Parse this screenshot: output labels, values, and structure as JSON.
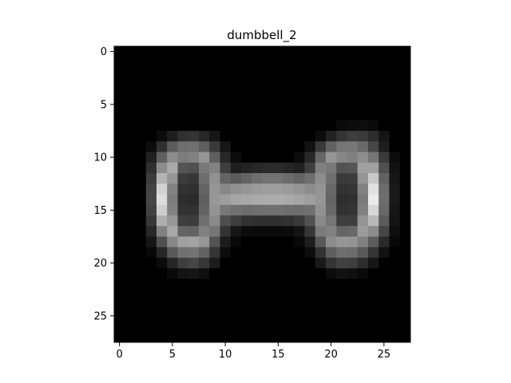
{
  "chart_data": {
    "type": "heatmap",
    "title": "dumbbell_2",
    "xlabel": "",
    "ylabel": "",
    "colormap": "gray",
    "grid": false,
    "legend": "none",
    "xlim": [
      -0.5,
      27.5
    ],
    "ylim": [
      27.5,
      -0.5
    ],
    "xticks": [
      0,
      5,
      10,
      15,
      20,
      25
    ],
    "yticks": [
      0,
      5,
      10,
      15,
      20,
      25
    ],
    "value_range": [
      0,
      255
    ],
    "rows": 28,
    "cols": 28,
    "values": [
      [
        0,
        0,
        0,
        0,
        0,
        0,
        0,
        0,
        0,
        0,
        0,
        0,
        0,
        0,
        0,
        0,
        0,
        0,
        0,
        0,
        0,
        0,
        0,
        0,
        0,
        0,
        0,
        0
      ],
      [
        0,
        0,
        0,
        0,
        0,
        0,
        0,
        0,
        0,
        0,
        0,
        0,
        0,
        0,
        0,
        0,
        0,
        0,
        0,
        0,
        0,
        0,
        0,
        0,
        0,
        0,
        0,
        0
      ],
      [
        0,
        0,
        0,
        0,
        0,
        0,
        0,
        0,
        0,
        0,
        0,
        0,
        0,
        0,
        0,
        0,
        0,
        0,
        0,
        0,
        0,
        0,
        0,
        0,
        0,
        0,
        0,
        0
      ],
      [
        0,
        0,
        0,
        0,
        0,
        0,
        0,
        0,
        0,
        0,
        0,
        0,
        0,
        0,
        0,
        0,
        0,
        0,
        0,
        0,
        0,
        0,
        0,
        0,
        0,
        0,
        0,
        0
      ],
      [
        0,
        0,
        0,
        0,
        0,
        0,
        0,
        0,
        0,
        0,
        0,
        0,
        0,
        0,
        0,
        0,
        0,
        0,
        0,
        0,
        0,
        0,
        0,
        0,
        0,
        0,
        0,
        0
      ],
      [
        0,
        0,
        0,
        0,
        0,
        0,
        0,
        0,
        0,
        0,
        0,
        0,
        0,
        0,
        0,
        0,
        0,
        0,
        0,
        0,
        0,
        0,
        0,
        0,
        0,
        0,
        0,
        0
      ],
      [
        0,
        0,
        0,
        0,
        0,
        0,
        0,
        0,
        0,
        0,
        0,
        0,
        0,
        0,
        0,
        0,
        0,
        0,
        0,
        0,
        0,
        0,
        0,
        0,
        0,
        0,
        0,
        0
      ],
      [
        0,
        0,
        0,
        0,
        0,
        0,
        0,
        0,
        0,
        0,
        0,
        0,
        0,
        0,
        0,
        0,
        0,
        0,
        0,
        0,
        0,
        10,
        12,
        14,
        10,
        0,
        0,
        0
      ],
      [
        0,
        0,
        0,
        0,
        12,
        30,
        48,
        52,
        40,
        22,
        0,
        0,
        0,
        0,
        0,
        0,
        0,
        0,
        0,
        12,
        34,
        52,
        62,
        58,
        44,
        22,
        0,
        0
      ],
      [
        0,
        0,
        0,
        12,
        48,
        92,
        110,
        112,
        95,
        58,
        22,
        0,
        0,
        0,
        0,
        0,
        0,
        0,
        18,
        58,
        98,
        118,
        120,
        105,
        70,
        30,
        0,
        0
      ],
      [
        0,
        0,
        0,
        32,
        95,
        140,
        125,
        130,
        150,
        95,
        40,
        12,
        0,
        0,
        0,
        0,
        0,
        12,
        40,
        102,
        150,
        135,
        128,
        142,
        118,
        58,
        12,
        0
      ],
      [
        0,
        0,
        0,
        48,
        140,
        170,
        85,
        80,
        120,
        130,
        62,
        30,
        35,
        40,
        42,
        42,
        38,
        32,
        62,
        128,
        120,
        82,
        85,
        160,
        160,
        80,
        18,
        0
      ],
      [
        0,
        0,
        0,
        60,
        180,
        150,
        60,
        55,
        110,
        145,
        100,
        90,
        100,
        110,
        115,
        115,
        108,
        100,
        110,
        142,
        112,
        58,
        60,
        150,
        200,
        98,
        22,
        0
      ],
      [
        0,
        0,
        0,
        68,
        210,
        130,
        50,
        48,
        100,
        150,
        135,
        145,
        150,
        155,
        158,
        158,
        155,
        148,
        140,
        148,
        104,
        50,
        52,
        130,
        225,
        108,
        25,
        0
      ],
      [
        0,
        0,
        0,
        70,
        220,
        125,
        45,
        42,
        95,
        152,
        158,
        165,
        168,
        170,
        172,
        172,
        170,
        165,
        158,
        150,
        100,
        45,
        48,
        122,
        235,
        110,
        25,
        0
      ],
      [
        0,
        0,
        0,
        66,
        205,
        130,
        50,
        50,
        100,
        148,
        120,
        112,
        108,
        110,
        112,
        112,
        110,
        108,
        112,
        146,
        105,
        50,
        52,
        128,
        215,
        104,
        22,
        0
      ],
      [
        0,
        0,
        0,
        55,
        175,
        150,
        62,
        60,
        112,
        138,
        78,
        62,
        50,
        48,
        48,
        48,
        50,
        58,
        82,
        138,
        118,
        62,
        62,
        148,
        185,
        92,
        20,
        0
      ],
      [
        0,
        0,
        0,
        40,
        130,
        168,
        100,
        98,
        128,
        118,
        52,
        22,
        12,
        10,
        10,
        10,
        12,
        20,
        55,
        122,
        130,
        100,
        104,
        155,
        140,
        70,
        15,
        0
      ],
      [
        0,
        0,
        0,
        22,
        80,
        135,
        160,
        162,
        150,
        82,
        28,
        8,
        0,
        0,
        0,
        0,
        0,
        8,
        30,
        88,
        140,
        150,
        148,
        128,
        92,
        42,
        8,
        0
      ],
      [
        0,
        0,
        0,
        8,
        38,
        88,
        112,
        115,
        98,
        52,
        12,
        0,
        0,
        0,
        0,
        0,
        0,
        0,
        12,
        50,
        95,
        110,
        108,
        88,
        52,
        18,
        0,
        0
      ],
      [
        0,
        0,
        0,
        0,
        12,
        38,
        62,
        70,
        55,
        28,
        0,
        0,
        0,
        0,
        0,
        0,
        0,
        0,
        0,
        25,
        52,
        65,
        62,
        45,
        22,
        0,
        0,
        0
      ],
      [
        0,
        0,
        0,
        0,
        0,
        10,
        20,
        22,
        15,
        0,
        0,
        0,
        0,
        0,
        0,
        0,
        0,
        0,
        0,
        0,
        12,
        18,
        16,
        10,
        0,
        0,
        0,
        0
      ],
      [
        0,
        0,
        0,
        0,
        0,
        0,
        0,
        0,
        0,
        0,
        0,
        0,
        0,
        0,
        0,
        0,
        0,
        0,
        0,
        0,
        0,
        0,
        0,
        0,
        0,
        0,
        0,
        0
      ],
      [
        0,
        0,
        0,
        0,
        0,
        0,
        0,
        0,
        0,
        0,
        0,
        0,
        0,
        0,
        0,
        0,
        0,
        0,
        0,
        0,
        0,
        0,
        0,
        0,
        0,
        0,
        0,
        0
      ],
      [
        0,
        0,
        0,
        0,
        0,
        0,
        0,
        0,
        0,
        0,
        0,
        0,
        0,
        0,
        0,
        0,
        0,
        0,
        0,
        0,
        0,
        0,
        0,
        0,
        0,
        0,
        0,
        0
      ],
      [
        0,
        0,
        0,
        0,
        0,
        0,
        0,
        0,
        0,
        0,
        0,
        0,
        0,
        0,
        0,
        0,
        0,
        0,
        0,
        0,
        0,
        0,
        0,
        0,
        0,
        0,
        0,
        0
      ],
      [
        0,
        0,
        0,
        0,
        0,
        0,
        0,
        0,
        0,
        0,
        0,
        0,
        0,
        0,
        0,
        0,
        0,
        0,
        0,
        0,
        0,
        0,
        0,
        0,
        0,
        0,
        0,
        0
      ],
      [
        0,
        0,
        0,
        0,
        0,
        0,
        0,
        0,
        0,
        0,
        0,
        0,
        0,
        0,
        0,
        0,
        0,
        0,
        0,
        0,
        0,
        0,
        0,
        0,
        0,
        0,
        0,
        0
      ]
    ]
  }
}
